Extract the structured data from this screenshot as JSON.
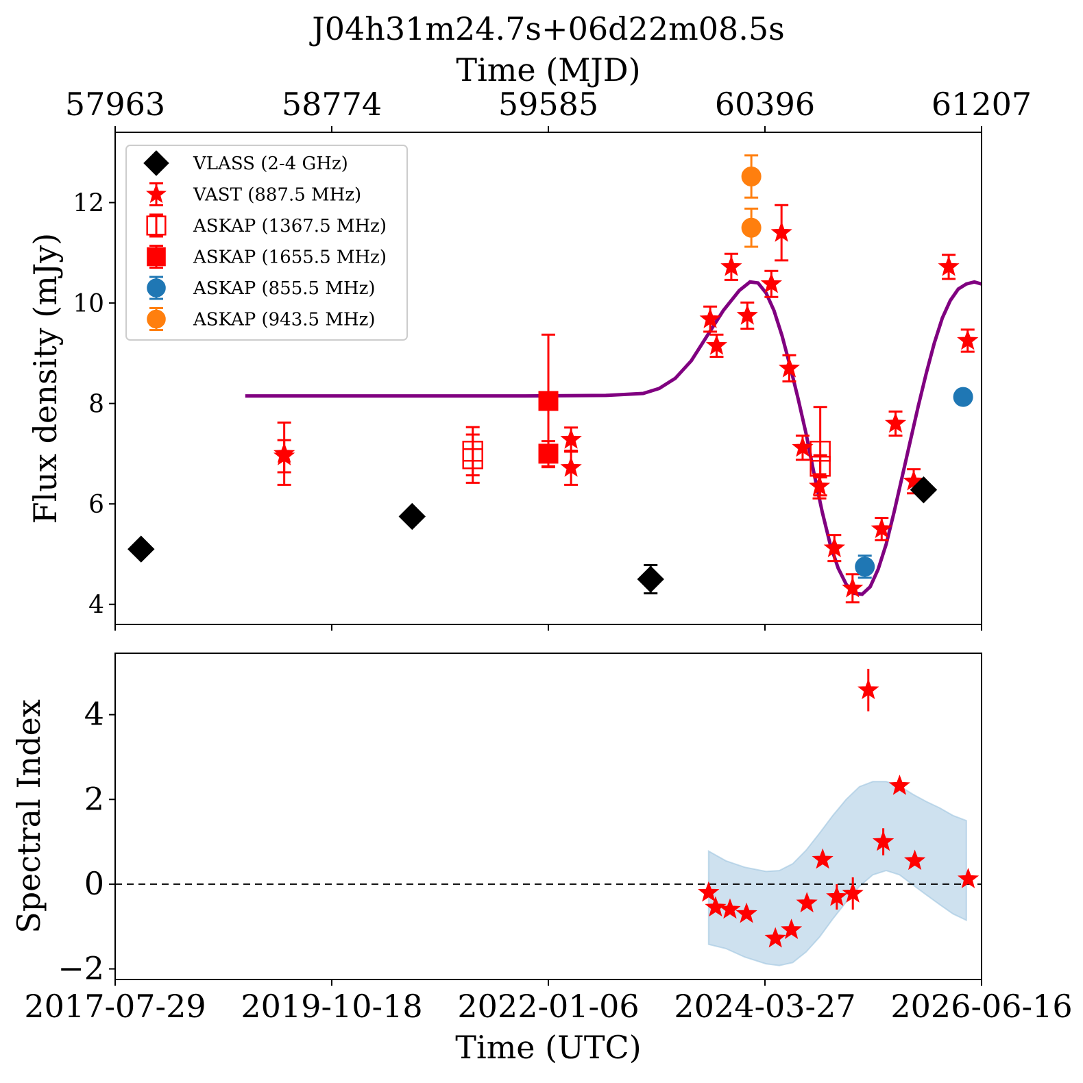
{
  "title": "J04h31m24.7s+06d22m08.5s",
  "colors": {
    "vlass": "#000000",
    "vast": "#ff0000",
    "askap": "#ff0000",
    "askap_855": "#1f77b4",
    "askap_943": "#ff7f0e",
    "model": "#800080",
    "band_fill": "#9ec4e0"
  },
  "chart_data": [
    {
      "type": "scatter",
      "panel": "flux-density",
      "title": "J04h31m24.7s+06d22m08.5s",
      "top_xlabel": "Time (MJD)",
      "top_xticks": [
        57963,
        58774,
        59585,
        60396,
        61207
      ],
      "top_xtick_labels": [
        "57963",
        "58774",
        "59585",
        "60396",
        "61207"
      ],
      "xlim_mjd": [
        57963,
        61207
      ],
      "ylabel": "Flux density (mJy)",
      "ylim": [
        3.6,
        13.4
      ],
      "yticks": [
        4,
        6,
        8,
        10,
        12
      ],
      "ytick_labels": [
        "4",
        "6",
        "8",
        "10",
        "12"
      ],
      "legend_position": "upper-left",
      "series": [
        {
          "name": "VLASS (2-4 GHz)",
          "marker": "diamond",
          "filled": true,
          "color_key": "vlass",
          "points": [
            {
              "x": 58060,
              "y": 5.1,
              "err": 0.1
            },
            {
              "x": 59075,
              "y": 5.75,
              "err": 0.1
            },
            {
              "x": 59968,
              "y": 4.5,
              "err": 0.28
            },
            {
              "x": 60990,
              "y": 6.28,
              "err": 0.1
            }
          ]
        },
        {
          "name": "VAST (887.5 MHz)",
          "marker": "star",
          "filled": true,
          "color_key": "vast",
          "points": [
            {
              "x": 58596,
              "y": 7.0,
              "err": 0.62
            },
            {
              "x": 58596,
              "y": 6.95,
              "err": 0.32
            },
            {
              "x": 59670,
              "y": 7.28,
              "err": 0.24
            },
            {
              "x": 59670,
              "y": 6.72,
              "err": 0.34
            },
            {
              "x": 60191,
              "y": 9.68,
              "err": 0.25
            },
            {
              "x": 60215,
              "y": 9.15,
              "err": 0.22
            },
            {
              "x": 60270,
              "y": 10.72,
              "err": 0.26
            },
            {
              "x": 60330,
              "y": 9.75,
              "err": 0.26
            },
            {
              "x": 60458,
              "y": 11.4,
              "err": 0.55
            },
            {
              "x": 60420,
              "y": 10.38,
              "err": 0.26
            },
            {
              "x": 60487,
              "y": 8.7,
              "err": 0.26
            },
            {
              "x": 60537,
              "y": 7.12,
              "err": 0.24
            },
            {
              "x": 60600,
              "y": 6.35,
              "err": 0.24
            },
            {
              "x": 60656,
              "y": 5.12,
              "err": 0.26
            },
            {
              "x": 60724,
              "y": 4.32,
              "err": 0.28
            },
            {
              "x": 60833,
              "y": 5.5,
              "err": 0.22
            },
            {
              "x": 60885,
              "y": 7.6,
              "err": 0.24
            },
            {
              "x": 60953,
              "y": 6.45,
              "err": 0.24
            },
            {
              "x": 61084,
              "y": 10.72,
              "err": 0.24
            },
            {
              "x": 61155,
              "y": 9.25,
              "err": 0.22
            }
          ]
        },
        {
          "name": "ASKAP (1367.5 MHz)",
          "marker": "square",
          "filled": false,
          "color_key": "askap",
          "points": [
            {
              "x": 59302,
              "y": 7.05,
              "err": 0.48
            },
            {
              "x": 59302,
              "y": 6.9,
              "err": 0.48
            },
            {
              "x": 60603,
              "y": 7.05,
              "err": 0.88
            },
            {
              "x": 60603,
              "y": 6.75,
              "err": 0.22
            }
          ]
        },
        {
          "name": "ASKAP (1655.5 MHz)",
          "marker": "square",
          "filled": true,
          "color_key": "askap",
          "points": [
            {
              "x": 59585,
              "y": 8.05,
              "err": 1.32
            },
            {
              "x": 59585,
              "y": 7.0,
              "err": 0.25
            }
          ]
        },
        {
          "name": "ASKAP (855.5 MHz)",
          "marker": "circle",
          "filled": true,
          "color_key": "askap_855",
          "points": [
            {
              "x": 60770,
              "y": 4.75,
              "err": 0.22
            },
            {
              "x": 61138,
              "y": 8.13,
              "err": 0.1
            }
          ]
        },
        {
          "name": "ASKAP (943.5 MHz)",
          "marker": "circle",
          "filled": true,
          "color_key": "askap_943",
          "points": [
            {
              "x": 60345,
              "y": 12.52,
              "err": 0.42
            },
            {
              "x": 60345,
              "y": 11.5,
              "err": 0.38
            }
          ]
        }
      ],
      "model_curve": {
        "color_key": "model",
        "x": [
          58450,
          59500,
          59800,
          59940,
          60000,
          60060,
          60120,
          60180,
          60240,
          60300,
          60340,
          60370,
          60400,
          60430,
          60460,
          60490,
          60520,
          60550,
          60580,
          60610,
          60640,
          60670,
          60700,
          60730,
          60760,
          60790,
          60820,
          60850,
          60880,
          60910,
          60940,
          60970,
          61000,
          61030,
          61060,
          61090,
          61120,
          61150,
          61180,
          61207
        ],
        "y": [
          8.15,
          8.15,
          8.16,
          8.2,
          8.3,
          8.5,
          8.85,
          9.35,
          9.85,
          10.25,
          10.42,
          10.4,
          10.2,
          9.85,
          9.35,
          8.75,
          8.1,
          7.4,
          6.6,
          5.85,
          5.2,
          4.72,
          4.4,
          4.22,
          4.2,
          4.35,
          4.7,
          5.2,
          5.85,
          6.55,
          7.25,
          7.95,
          8.6,
          9.2,
          9.7,
          10.05,
          10.28,
          10.38,
          10.42,
          10.38
        ]
      }
    },
    {
      "type": "scatter",
      "panel": "spectral-index",
      "xlabel": "Time (UTC)",
      "xticks": [
        57963,
        58774,
        59585,
        60396,
        61207
      ],
      "xtick_labels": [
        "2017-07-29",
        "2019-10-18",
        "2022-01-06",
        "2024-03-27",
        "2026-06-16"
      ],
      "xlim_mjd": [
        57963,
        61207
      ],
      "ylabel": "Spectral Index",
      "ylim": [
        -2.25,
        5.45
      ],
      "yticks": [
        -2,
        0,
        2,
        4
      ],
      "ytick_labels": [
        "−2",
        "0",
        "2",
        "4"
      ],
      "reference_line": {
        "y": 0,
        "style": "dashed"
      },
      "points": [
        {
          "x": 60185,
          "y": -0.2,
          "err": 0.1
        },
        {
          "x": 60211,
          "y": -0.55,
          "err": 0.1
        },
        {
          "x": 60265,
          "y": -0.6,
          "err": 0.1
        },
        {
          "x": 60327,
          "y": -0.7,
          "err": 0.1
        },
        {
          "x": 60435,
          "y": -1.28,
          "err": 0.1
        },
        {
          "x": 60495,
          "y": -1.08,
          "err": 0.1
        },
        {
          "x": 60553,
          "y": -0.45,
          "err": 0.1
        },
        {
          "x": 60612,
          "y": 0.58,
          "err": 0.1
        },
        {
          "x": 60665,
          "y": -0.3,
          "err": 0.3
        },
        {
          "x": 60725,
          "y": -0.22,
          "err": 0.38
        },
        {
          "x": 60783,
          "y": 4.58,
          "err": 0.5
        },
        {
          "x": 60839,
          "y": 1.0,
          "err": 0.32
        },
        {
          "x": 60900,
          "y": 2.32,
          "err": 0.1
        },
        {
          "x": 60957,
          "y": 0.55,
          "err": 0.1
        },
        {
          "x": 61157,
          "y": 0.12,
          "err": 0.1
        }
      ],
      "band": {
        "color_key": "band_fill",
        "x": [
          60185,
          60250,
          60320,
          60400,
          60450,
          60500,
          60550,
          60600,
          60650,
          60700,
          60750,
          60800,
          60850,
          60900,
          60950,
          61000,
          61050,
          61100,
          61150
        ],
        "upper": [
          0.78,
          0.55,
          0.4,
          0.3,
          0.32,
          0.48,
          0.8,
          1.2,
          1.62,
          2.0,
          2.3,
          2.42,
          2.42,
          2.32,
          2.12,
          1.95,
          1.8,
          1.62,
          1.5
        ],
        "lower": [
          -1.42,
          -1.52,
          -1.72,
          -1.88,
          -1.92,
          -1.85,
          -1.6,
          -1.25,
          -0.82,
          -0.42,
          -0.05,
          0.22,
          0.32,
          0.22,
          -0.02,
          -0.25,
          -0.48,
          -0.7,
          -0.85
        ]
      }
    }
  ]
}
